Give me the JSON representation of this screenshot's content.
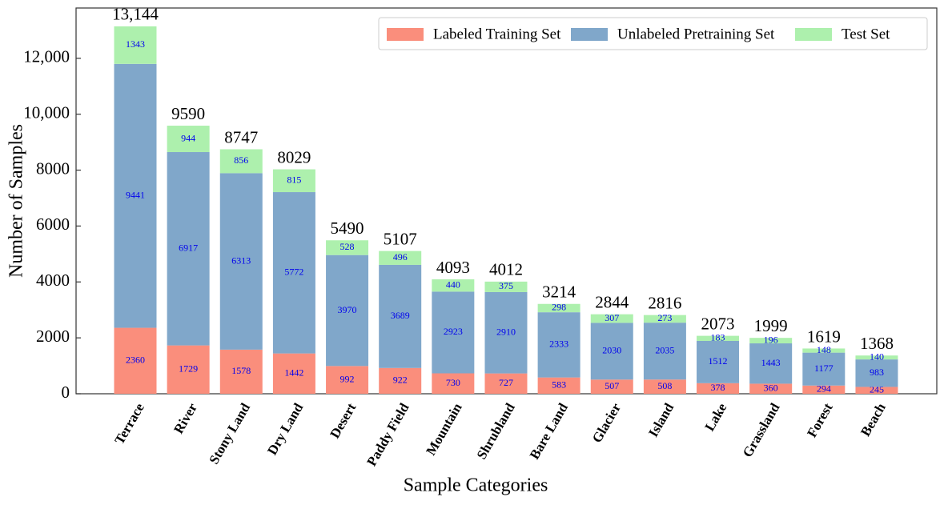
{
  "chart_data": {
    "type": "stacked_bar",
    "x_label": "Sample Categories",
    "y_label": "Number of Samples",
    "categories": [
      "Terrace",
      "River",
      "Stony Land",
      "Dry Land",
      "Desert",
      "Paddy Field",
      "Mountain",
      "Shrubland",
      "Bare Land",
      "Glacier",
      "Island",
      "Lake",
      "Grassland",
      "Forest",
      "Beach"
    ],
    "series": [
      {
        "name": "Labeled Training Set",
        "color": "#fa8e7c",
        "values": [
          2360,
          1729,
          1578,
          1442,
          992,
          922,
          730,
          727,
          583,
          507,
          508,
          378,
          360,
          294,
          245
        ]
      },
      {
        "name": "Unlabeled Pretraining Set",
        "color": "#80a7ca",
        "values": [
          9441,
          6917,
          6313,
          5772,
          3970,
          3689,
          2923,
          2910,
          2333,
          2030,
          2035,
          1512,
          1443,
          1177,
          983
        ]
      },
      {
        "name": "Test Set",
        "color": "#adf0ad",
        "values": [
          1343,
          944,
          856,
          815,
          528,
          496,
          440,
          375,
          298,
          307,
          273,
          183,
          196,
          148,
          140
        ]
      }
    ],
    "totals": {
      "values": [
        13144,
        9590,
        8747,
        8029,
        5490,
        5107,
        4093,
        4012,
        3214,
        2844,
        2816,
        2073,
        1999,
        1619,
        1368
      ],
      "value_labels": [
        "13,144",
        "9590",
        "8747",
        "8029",
        "5490",
        "5107",
        "4093",
        "4012",
        "3214",
        "2844",
        "2816",
        "2073",
        "1999",
        "1619",
        "1368"
      ]
    },
    "segment_label_color": "#0000ee",
    "ylim": [
      0,
      13800
    ],
    "yticks": [
      0,
      2000,
      4000,
      6000,
      8000,
      {
        "value": 10000,
        "label": "10,000"
      },
      {
        "value": 12000,
        "label": "12,000"
      }
    ],
    "legend": "upper right"
  }
}
